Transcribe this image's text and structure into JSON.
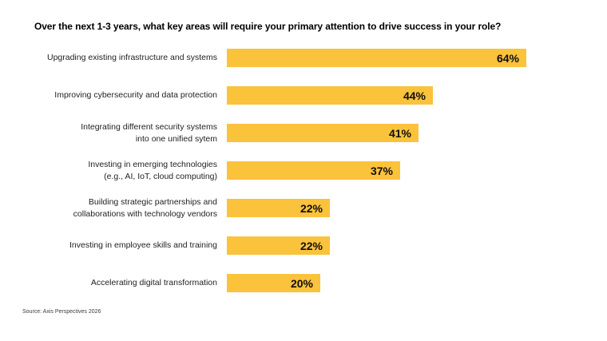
{
  "colors": {
    "background": "#ffffff",
    "bar": "#FBC23C",
    "title": "#000000",
    "label": "#1f1f1f",
    "value": "#0e0e0e",
    "source": "#3d3d3d"
  },
  "chart_data": {
    "type": "bar",
    "orientation": "horizontal",
    "title": "Over the next 1-3 years, what key areas will require your primary attention to drive success in your role?",
    "categories": [
      "Upgrading existing infrastructure and systems",
      "Improving cybersecurity and data protection",
      "Integrating different security systems\ninto one unified sytem",
      "Investing in emerging technologies\n(e.g., AI, IoT, cloud computing)",
      "Building strategic partnerships and\ncollaborations with technology vendors",
      "Investing in employee skills and training",
      "Accelerating digital transformation"
    ],
    "values": [
      64,
      44,
      41,
      37,
      22,
      22,
      20
    ],
    "value_suffix": "%",
    "value_label_position": "inside-end",
    "axis": "none",
    "grid": false,
    "legend": false,
    "source": "Source: Axis Perspectives 2026"
  }
}
